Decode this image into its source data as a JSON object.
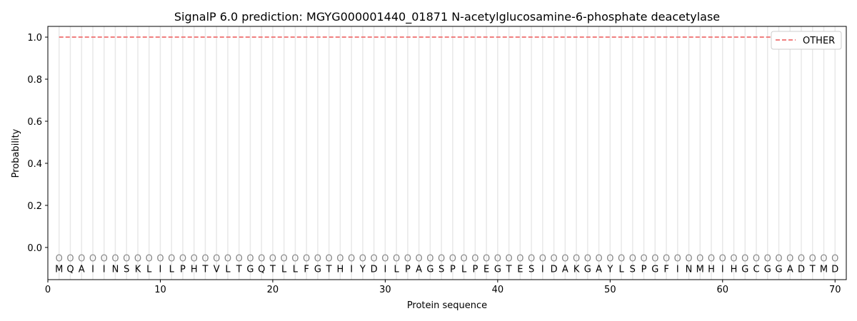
{
  "chart_data": {
    "type": "line",
    "title": "SignalP 6.0 prediction: MGYG000001440_01871 N-acetylglucosamine-6-phosphate deacetylase",
    "xlabel": "Protein sequence",
    "ylabel": "Probability",
    "xlim": [
      0,
      71
    ],
    "ylim": [
      -0.153,
      1.051
    ],
    "xticks": [
      0,
      10,
      20,
      30,
      40,
      50,
      60,
      70
    ],
    "yticks": [
      0.0,
      0.2,
      0.4,
      0.6,
      0.8,
      1.0
    ],
    "ytick_labels": [
      "0.0",
      "0.2",
      "0.4",
      "0.6",
      "0.8",
      "1.0"
    ],
    "grid": "vertical lines at each residue",
    "legend_placement": "top-right",
    "sequence": [
      "M",
      "Q",
      "A",
      "I",
      "I",
      "N",
      "S",
      "K",
      "L",
      "I",
      "L",
      "P",
      "H",
      "T",
      "V",
      "L",
      "T",
      "G",
      "Q",
      "T",
      "L",
      "L",
      "F",
      "G",
      "T",
      "H",
      "I",
      "Y",
      "D",
      "I",
      "L",
      "P",
      "A",
      "G",
      "S",
      "P",
      "L",
      "P",
      "E",
      "G",
      "T",
      "E",
      "S",
      "I",
      "D",
      "A",
      "K",
      "G",
      "A",
      "Y",
      "L",
      "S",
      "P",
      "G",
      "F",
      "I",
      "N",
      "M",
      "H",
      "I",
      "H",
      "G",
      "C",
      "G",
      "G",
      "A",
      "D",
      "T",
      "M",
      "D"
    ],
    "region_label": "O",
    "series": [
      {
        "name": "OTHER",
        "color": "#f08080",
        "style": "dashed",
        "x_range": [
          1,
          70
        ],
        "value": 1.0
      }
    ]
  }
}
